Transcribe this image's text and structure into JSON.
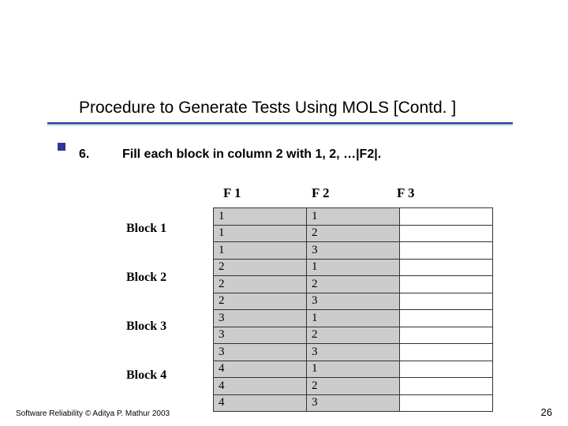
{
  "title": "Procedure to Generate Tests Using MOLS [Contd. ]",
  "step": {
    "num": "6.",
    "text": "Fill each block in column 2 with 1, 2, …|F2|."
  },
  "headers": {
    "f1": "F 1",
    "f2": "F 2",
    "f3": "F 3"
  },
  "block_labels": [
    "Block 1",
    "Block 2",
    "Block 3",
    "Block 4"
  ],
  "table": {
    "f1": [
      "1",
      "1",
      "1",
      "2",
      "2",
      "2",
      "3",
      "3",
      "3",
      "4",
      "4",
      "4"
    ],
    "f2": [
      "1",
      "2",
      "3",
      "1",
      "2",
      "3",
      "1",
      "2",
      "3",
      "1",
      "2",
      "3"
    ]
  },
  "colors": {
    "underline_dark": "#333399",
    "underline_light": "#99cccc",
    "cell_fill": "#cccccc",
    "bullet": "#333399"
  },
  "footer": "Software Reliability © Aditya P. Mathur 2003",
  "page": "26"
}
